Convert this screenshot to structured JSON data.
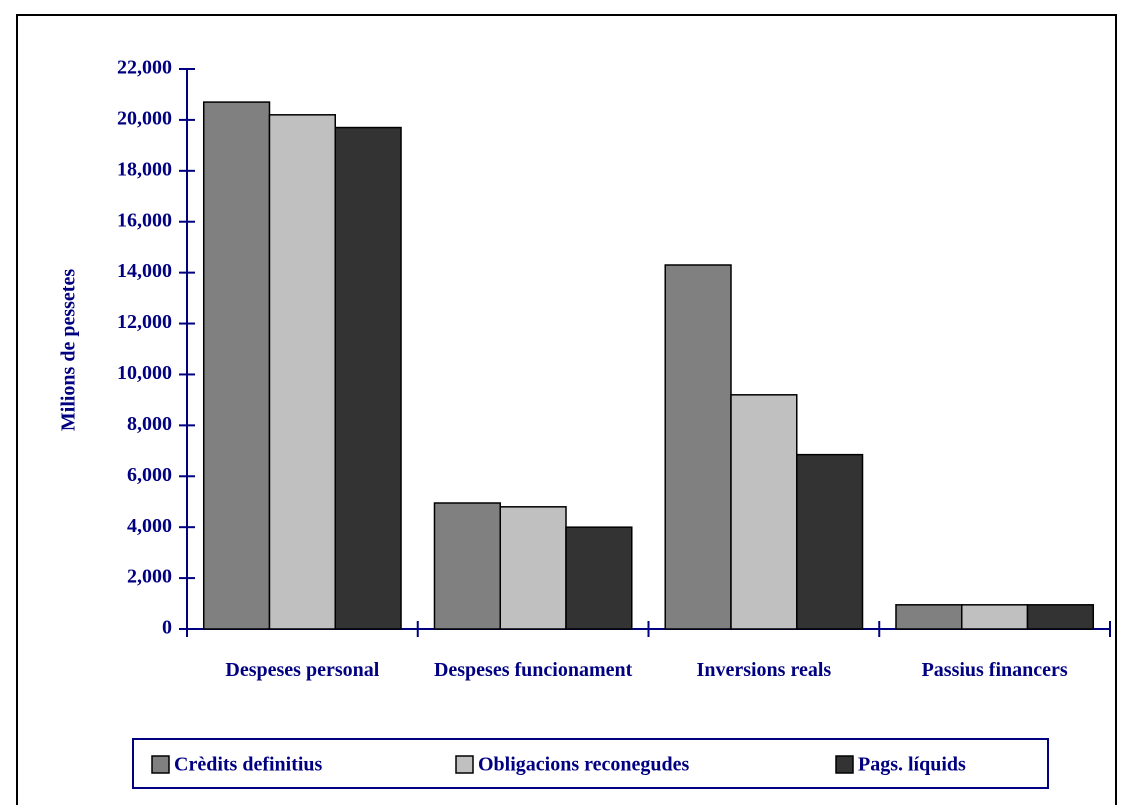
{
  "chart_data": {
    "type": "bar",
    "y_label": "Milions de pessetes",
    "categories": [
      "Despeses personal",
      "Despeses funcionament",
      "Inversions reals",
      "Passius financers"
    ],
    "series": [
      {
        "name": "Crèdits definitius",
        "color": "#808080",
        "values": [
          20700,
          4950,
          14300,
          950
        ]
      },
      {
        "name": "Obligacions reconegudes",
        "color": "#c0c0c0",
        "values": [
          20200,
          4800,
          9200,
          950
        ]
      },
      {
        "name": "Pags. líquids",
        "color": "#333333",
        "values": [
          19700,
          4000,
          6850,
          950
        ]
      }
    ],
    "ylim": [
      0,
      22000
    ],
    "yticks": [
      0,
      {
        "value": 2000,
        "label": "2,000"
      },
      {
        "value": 4000,
        "label": "4,000"
      },
      {
        "value": 6000,
        "label": "6,000"
      },
      {
        "value": 8000,
        "label": "8,000"
      },
      {
        "value": 10000,
        "label": "10,000"
      },
      {
        "value": 12000,
        "label": "12,000"
      },
      {
        "value": 14000,
        "label": "14,000"
      },
      {
        "value": 16000,
        "label": "16,000"
      },
      {
        "value": 18000,
        "label": "18,000"
      },
      {
        "value": 20000,
        "label": "20,000"
      },
      {
        "value": 22000,
        "label": "22,000"
      }
    ],
    "legend": "bottom"
  }
}
